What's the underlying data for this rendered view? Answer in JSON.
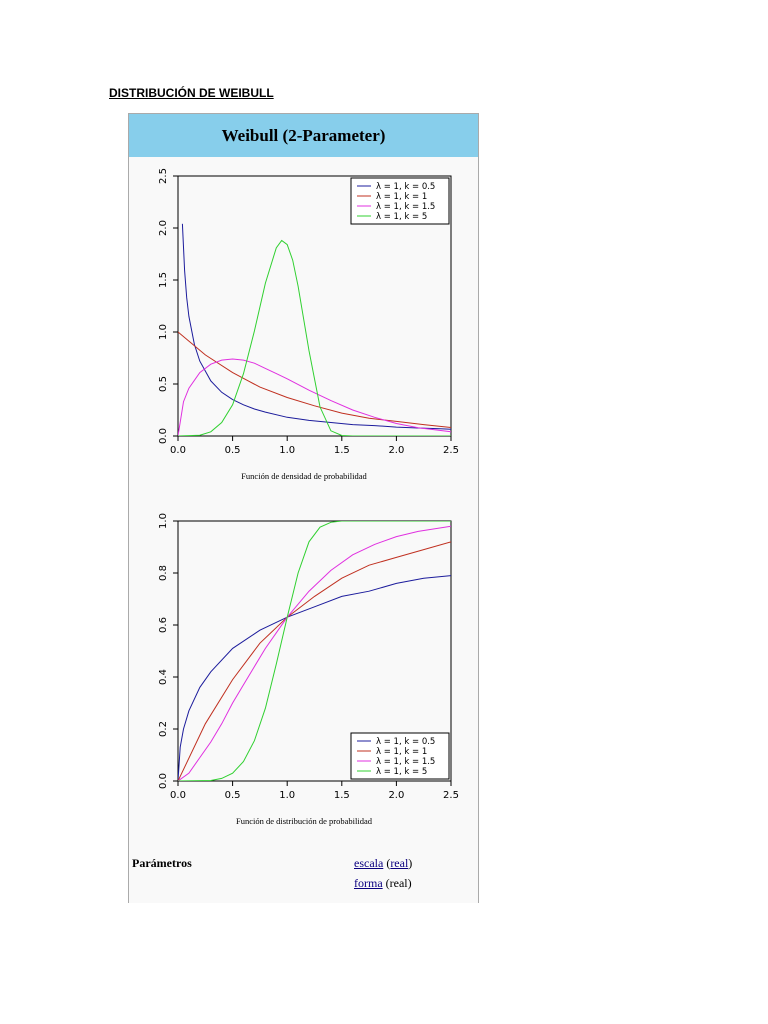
{
  "doc_title": "DISTRIBUCIÓN DE WEIBULL",
  "infobox": {
    "header": "Weibull (2-Parameter)",
    "params_label": "Parámetros",
    "params": [
      {
        "link": "escala",
        "open": " (",
        "type": "real",
        "type_is_link": true,
        "close": ")"
      },
      {
        "link": "forma",
        "open": " (",
        "type": "real",
        "type_is_link": false,
        "close": ")"
      }
    ]
  },
  "colors": {
    "k05": "#1c1c9c",
    "k1": "#c03020",
    "k15": "#e030e0",
    "k5": "#30d030"
  },
  "chart_data": [
    {
      "type": "line",
      "title": "",
      "caption": "Función de densidad de probabilidad",
      "xlabel": "",
      "ylabel": "",
      "xlim": [
        0,
        2.5
      ],
      "ylim": [
        0,
        2.5
      ],
      "xticks": [
        "0.0",
        "0.5",
        "1.0",
        "1.5",
        "2.0",
        "2.5"
      ],
      "yticks": [
        "0.0",
        "0.5",
        "1.0",
        "1.5",
        "2.0",
        "2.5"
      ],
      "legend_position": "top-right",
      "series": [
        {
          "name": "λ = 1, k = 0.5",
          "color": "#1c1c9c",
          "points": [
            [
              0.04,
              2.04
            ],
            [
              0.06,
              1.59
            ],
            [
              0.08,
              1.33
            ],
            [
              0.1,
              1.15
            ],
            [
              0.15,
              0.88
            ],
            [
              0.2,
              0.72
            ],
            [
              0.3,
              0.53
            ],
            [
              0.4,
              0.42
            ],
            [
              0.5,
              0.35
            ],
            [
              0.6,
              0.3
            ],
            [
              0.7,
              0.26
            ],
            [
              0.8,
              0.23
            ],
            [
              1.0,
              0.18
            ],
            [
              1.2,
              0.15
            ],
            [
              1.4,
              0.13
            ],
            [
              1.6,
              0.11
            ],
            [
              1.8,
              0.1
            ],
            [
              2.0,
              0.086
            ],
            [
              2.2,
              0.077
            ],
            [
              2.4,
              0.069
            ],
            [
              2.5,
              0.065
            ]
          ]
        },
        {
          "name": "λ = 1, k = 1",
          "color": "#c03020",
          "points": [
            [
              0,
              1.0
            ],
            [
              0.25,
              0.78
            ],
            [
              0.5,
              0.61
            ],
            [
              0.75,
              0.47
            ],
            [
              1.0,
              0.37
            ],
            [
              1.25,
              0.29
            ],
            [
              1.5,
              0.22
            ],
            [
              1.75,
              0.17
            ],
            [
              2.0,
              0.14
            ],
            [
              2.25,
              0.11
            ],
            [
              2.5,
              0.082
            ]
          ]
        },
        {
          "name": "λ = 1, k = 1.5",
          "color": "#e030e0",
          "points": [
            [
              0,
              0
            ],
            [
              0.05,
              0.33
            ],
            [
              0.1,
              0.46
            ],
            [
              0.2,
              0.61
            ],
            [
              0.3,
              0.69
            ],
            [
              0.4,
              0.73
            ],
            [
              0.5,
              0.74
            ],
            [
              0.6,
              0.73
            ],
            [
              0.7,
              0.7
            ],
            [
              0.8,
              0.65
            ],
            [
              0.9,
              0.6
            ],
            [
              1.0,
              0.55
            ],
            [
              1.2,
              0.44
            ],
            [
              1.4,
              0.34
            ],
            [
              1.6,
              0.25
            ],
            [
              1.8,
              0.18
            ],
            [
              2.0,
              0.12
            ],
            [
              2.2,
              0.08
            ],
            [
              2.5,
              0.04
            ]
          ]
        },
        {
          "name": "λ = 1, k = 5",
          "color": "#30d030",
          "points": [
            [
              0,
              0
            ],
            [
              0.2,
              0.008
            ],
            [
              0.3,
              0.04
            ],
            [
              0.4,
              0.13
            ],
            [
              0.5,
              0.3
            ],
            [
              0.6,
              0.6
            ],
            [
              0.7,
              1.01
            ],
            [
              0.8,
              1.47
            ],
            [
              0.9,
              1.81
            ],
            [
              0.95,
              1.88
            ],
            [
              1.0,
              1.84
            ],
            [
              1.05,
              1.69
            ],
            [
              1.1,
              1.44
            ],
            [
              1.2,
              0.82
            ],
            [
              1.3,
              0.28
            ],
            [
              1.4,
              0.05
            ],
            [
              1.5,
              0.005
            ],
            [
              1.6,
              0
            ],
            [
              2.5,
              0
            ]
          ]
        }
      ]
    },
    {
      "type": "line",
      "title": "",
      "caption": "Función de distribución de probabilidad",
      "xlabel": "",
      "ylabel": "",
      "xlim": [
        0,
        2.5
      ],
      "ylim": [
        0,
        1.0
      ],
      "xticks": [
        "0.0",
        "0.5",
        "1.0",
        "1.5",
        "2.0",
        "2.5"
      ],
      "yticks": [
        "0.0",
        "0.2",
        "0.4",
        "0.6",
        "0.8",
        "1.0"
      ],
      "legend_position": "bottom-right",
      "series": [
        {
          "name": "λ = 1, k = 0.5",
          "color": "#1c1c9c",
          "points": [
            [
              0,
              0
            ],
            [
              0.02,
              0.13
            ],
            [
              0.05,
              0.2
            ],
            [
              0.1,
              0.27
            ],
            [
              0.2,
              0.36
            ],
            [
              0.3,
              0.42
            ],
            [
              0.5,
              0.51
            ],
            [
              0.75,
              0.58
            ],
            [
              1.0,
              0.63
            ],
            [
              1.25,
              0.67
            ],
            [
              1.5,
              0.71
            ],
            [
              1.75,
              0.73
            ],
            [
              2.0,
              0.76
            ],
            [
              2.25,
              0.78
            ],
            [
              2.5,
              0.79
            ]
          ]
        },
        {
          "name": "λ = 1, k = 1",
          "color": "#c03020",
          "points": [
            [
              0,
              0
            ],
            [
              0.25,
              0.22
            ],
            [
              0.5,
              0.39
            ],
            [
              0.75,
              0.53
            ],
            [
              1.0,
              0.63
            ],
            [
              1.25,
              0.71
            ],
            [
              1.5,
              0.78
            ],
            [
              1.75,
              0.83
            ],
            [
              2.0,
              0.86
            ],
            [
              2.25,
              0.89
            ],
            [
              2.5,
              0.92
            ]
          ]
        },
        {
          "name": "λ = 1, k = 1.5",
          "color": "#e030e0",
          "points": [
            [
              0,
              0
            ],
            [
              0.1,
              0.03
            ],
            [
              0.2,
              0.09
            ],
            [
              0.3,
              0.15
            ],
            [
              0.4,
              0.22
            ],
            [
              0.5,
              0.3
            ],
            [
              0.6,
              0.37
            ],
            [
              0.7,
              0.44
            ],
            [
              0.8,
              0.51
            ],
            [
              0.9,
              0.57
            ],
            [
              1.0,
              0.63
            ],
            [
              1.2,
              0.73
            ],
            [
              1.4,
              0.81
            ],
            [
              1.6,
              0.87
            ],
            [
              1.8,
              0.91
            ],
            [
              2.0,
              0.94
            ],
            [
              2.2,
              0.96
            ],
            [
              2.5,
              0.98
            ]
          ]
        },
        {
          "name": "λ = 1, k = 5",
          "color": "#30d030",
          "points": [
            [
              0,
              0
            ],
            [
              0.3,
              0.002
            ],
            [
              0.4,
              0.01
            ],
            [
              0.5,
              0.03
            ],
            [
              0.6,
              0.075
            ],
            [
              0.7,
              0.155
            ],
            [
              0.8,
              0.28
            ],
            [
              0.9,
              0.45
            ],
            [
              1.0,
              0.63
            ],
            [
              1.1,
              0.8
            ],
            [
              1.2,
              0.92
            ],
            [
              1.3,
              0.976
            ],
            [
              1.4,
              0.995
            ],
            [
              1.5,
              1.0
            ],
            [
              2.5,
              1.0
            ]
          ]
        }
      ]
    }
  ]
}
